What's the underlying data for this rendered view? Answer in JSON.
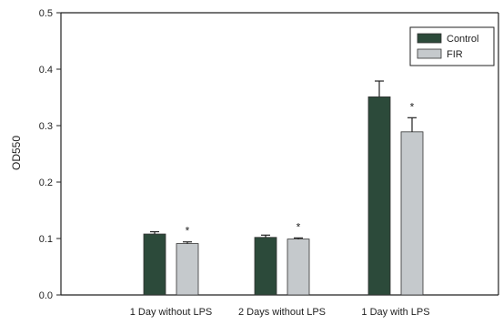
{
  "chart_data": {
    "type": "bar",
    "categories": [
      "1 Day without LPS",
      "2 Days without LPS",
      "1 Day with LPS"
    ],
    "series": [
      {
        "name": "Control",
        "values": [
          0.108,
          0.102,
          0.351
        ],
        "errors": [
          0.004,
          0.004,
          0.028
        ],
        "color": "#2c4a3a"
      },
      {
        "name": "FIR",
        "values": [
          0.091,
          0.099,
          0.289
        ],
        "errors": [
          0.003,
          0.002,
          0.025
        ],
        "color": "#c5c9cc"
      }
    ],
    "significance_marks": [
      "*",
      "*",
      "*"
    ],
    "significance_series": "FIR",
    "ylabel": "OD550",
    "xlabel": "",
    "ylim": [
      0,
      0.5
    ],
    "yticks": [
      "0.0",
      "0.1",
      "0.2",
      "0.3",
      "0.4",
      "0.5"
    ],
    "legend_position": "top-right",
    "grid": false
  }
}
